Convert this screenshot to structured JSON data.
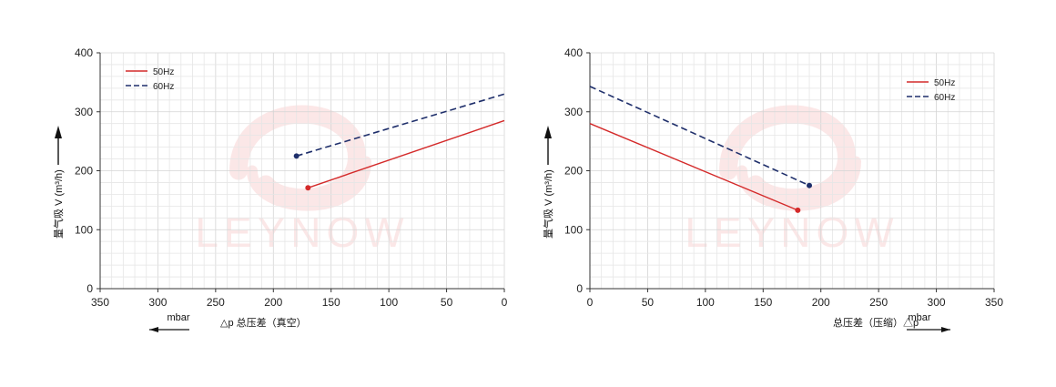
{
  "colors": {
    "series_50hz": "#d42a2a",
    "series_60hz": "#1f2f6b",
    "grid_minor": "#e6e6e6",
    "grid_major": "#d4d4d4",
    "axis": "#333333",
    "watermark": "#f9d4d4"
  },
  "watermark": "LEYNOW",
  "chart_data": [
    {
      "type": "line",
      "mode": "vacuum",
      "ylabel": "量气吸 V (m³/h)",
      "xlabel": "△p  总压差（真空）",
      "xunit": "mbar",
      "xlim": [
        350,
        0
      ],
      "ylim": [
        0,
        400
      ],
      "x_ticks": [
        350,
        300,
        250,
        200,
        150,
        100,
        50,
        0
      ],
      "y_ticks": [
        0,
        100,
        200,
        300,
        400
      ],
      "grid": true,
      "legend_position": "top-left",
      "series": [
        {
          "name": "50Hz",
          "style": "solid",
          "x": [
            170,
            0
          ],
          "y": [
            171,
            285
          ]
        },
        {
          "name": "60Hz",
          "style": "dashed",
          "x": [
            180,
            0
          ],
          "y": [
            225,
            330
          ]
        }
      ]
    },
    {
      "type": "line",
      "mode": "pressure",
      "ylabel": "量气吸 V (m³/h)",
      "xlabel": "总压差（压缩）△p",
      "xunit": "mbar",
      "xlim": [
        0,
        350
      ],
      "ylim": [
        0,
        400
      ],
      "x_ticks": [
        0,
        50,
        100,
        150,
        200,
        250,
        300,
        350
      ],
      "y_ticks": [
        0,
        100,
        200,
        300,
        400
      ],
      "grid": true,
      "legend_position": "top-right",
      "series": [
        {
          "name": "50Hz",
          "style": "solid",
          "x": [
            0,
            180
          ],
          "y": [
            280,
            133
          ]
        },
        {
          "name": "60Hz",
          "style": "dashed",
          "x": [
            0,
            190
          ],
          "y": [
            343,
            175
          ]
        }
      ]
    }
  ]
}
